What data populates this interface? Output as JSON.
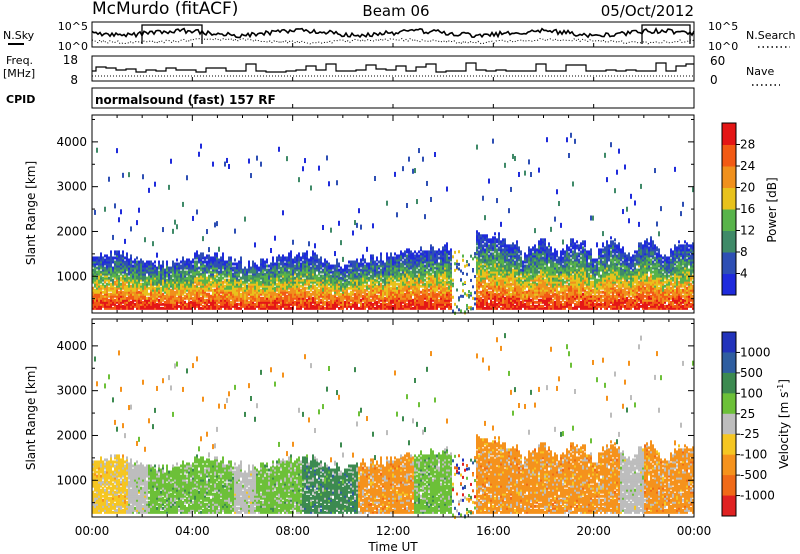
{
  "header": {
    "radar": "McMurdo (fitACF)",
    "beam": "Beam 06",
    "date": "05/Oct/2012"
  },
  "top_panels": {
    "nsky_label": "N.Sky",
    "nsky_ticks": [
      "10^5",
      "10^0"
    ],
    "nsearch_label": "N.Search",
    "nsearch_ticks": [
      "10^5",
      "10^0"
    ],
    "freq_label": "Freq.",
    "freq_unit": "[MHz]",
    "freq_ticks": [
      "18",
      "8"
    ],
    "nave_label": "Nave",
    "nave_ticks": [
      "60",
      "0"
    ],
    "cpid_label": "CPID",
    "cpid_text": "normalsound (fast) 157 RF"
  },
  "chart_data": [
    {
      "type": "heatmap",
      "quantity": "power",
      "ylabel": "Slant Range [km]",
      "y_ticks": [
        1000,
        2000,
        3000,
        4000
      ],
      "ylim": [
        180,
        4600
      ],
      "colorbar_label": "Power [dB]",
      "colorbar_ticks": [
        4,
        8,
        12,
        16,
        20,
        24,
        28
      ],
      "colorbar_range": [
        0,
        32
      ],
      "colors": [
        "#1f2bdc",
        "#2e4fb4",
        "#3f8a68",
        "#58b34a",
        "#e8c21c",
        "#f0901c",
        "#f25a14",
        "#e41616"
      ],
      "x_ticks": [
        "00:00",
        "04:00",
        "08:00",
        "12:00",
        "16:00",
        "20:00",
        "00:00"
      ],
      "xlim_hours": [
        0,
        24
      ]
    },
    {
      "type": "heatmap",
      "quantity": "velocity",
      "ylabel": "Slant Range [km]",
      "y_ticks": [
        1000,
        2000,
        3000,
        4000
      ],
      "ylim": [
        180,
        4600
      ],
      "colorbar_label": "Velocity",
      "colorbar_unit": "[m s",
      "colorbar_unit_sup": "-1",
      "colorbar_unit_end": "]",
      "colorbar_ticks": [
        "1000",
        "500",
        "100",
        "25",
        "-25",
        "-100",
        "-500",
        "-1000"
      ],
      "colors": [
        "#2233bb",
        "#2f5ea0",
        "#3c8a50",
        "#6cc038",
        "#bdbdbd",
        "#f5c622",
        "#f5921c",
        "#f06a18",
        "#e02222"
      ],
      "x_ticks": [
        "00:00",
        "04:00",
        "08:00",
        "12:00",
        "16:00",
        "20:00",
        "00:00"
      ],
      "xlabel": "Time UT",
      "xlim_hours": [
        0,
        24
      ]
    }
  ]
}
